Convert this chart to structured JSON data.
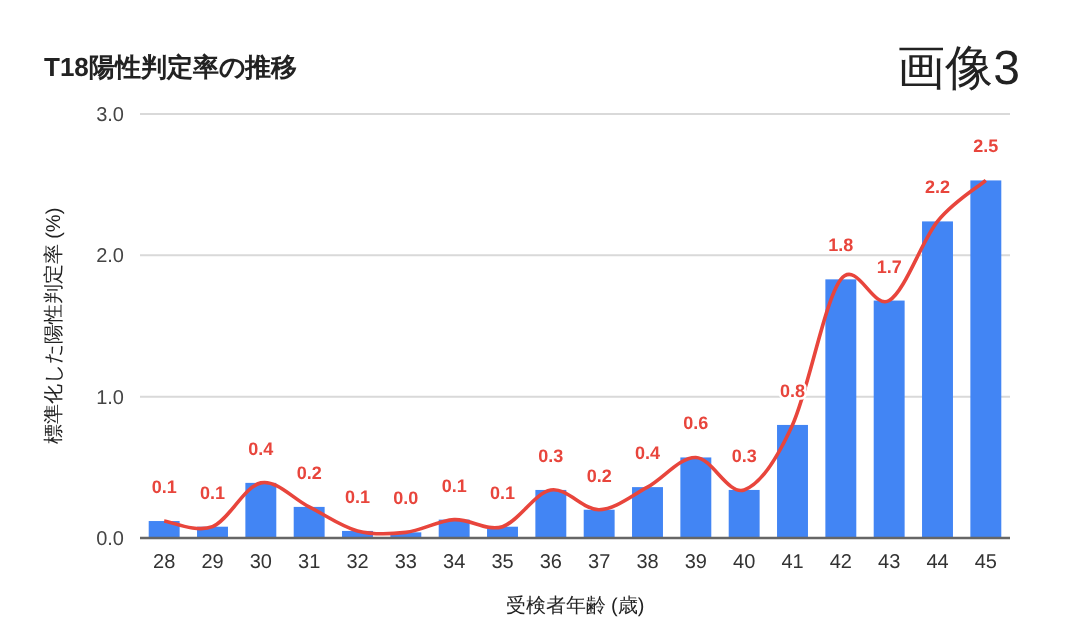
{
  "chart_data": {
    "type": "bar",
    "title": "T18陽性判定率の推移",
    "xlabel": "受検者年齢 (歳)",
    "ylabel": "標準化した陽性判定率 (%)",
    "annotations": [
      "画像3"
    ],
    "categories": [
      "28",
      "29",
      "30",
      "31",
      "32",
      "33",
      "34",
      "35",
      "36",
      "37",
      "38",
      "39",
      "40",
      "41",
      "42",
      "43",
      "44",
      "45"
    ],
    "series": [
      {
        "color": "#4285f4",
        "values": [
          0.12,
          0.08,
          0.39,
          0.22,
          0.05,
          0.04,
          0.13,
          0.08,
          0.34,
          0.2,
          0.36,
          0.57,
          0.34,
          0.8,
          1.83,
          1.68,
          2.24,
          2.53
        ]
      },
      {
        "type": "line",
        "color": "#e8453c",
        "values": [
          0.12,
          0.08,
          0.39,
          0.22,
          0.05,
          0.04,
          0.13,
          0.08,
          0.34,
          0.2,
          0.36,
          0.57,
          0.34,
          0.8,
          1.83,
          1.68,
          2.24,
          2.53
        ],
        "value_labels": [
          "0.1",
          "0.1",
          "0.4",
          "0.2",
          "0.1",
          "0.0",
          "0.1",
          "0.1",
          "0.3",
          "0.2",
          "0.4",
          "0.6",
          "0.3",
          "0.8",
          "1.8",
          "1.7",
          "2.2",
          "2.5"
        ]
      }
    ],
    "ylim": [
      0,
      3
    ],
    "yticks": [
      {
        "value": 0,
        "label": "0.0"
      },
      {
        "value": 1,
        "label": "1.0"
      },
      {
        "value": 2,
        "label": "2.0"
      },
      {
        "value": 3,
        "label": "3.0"
      }
    ],
    "grid": "y"
  }
}
